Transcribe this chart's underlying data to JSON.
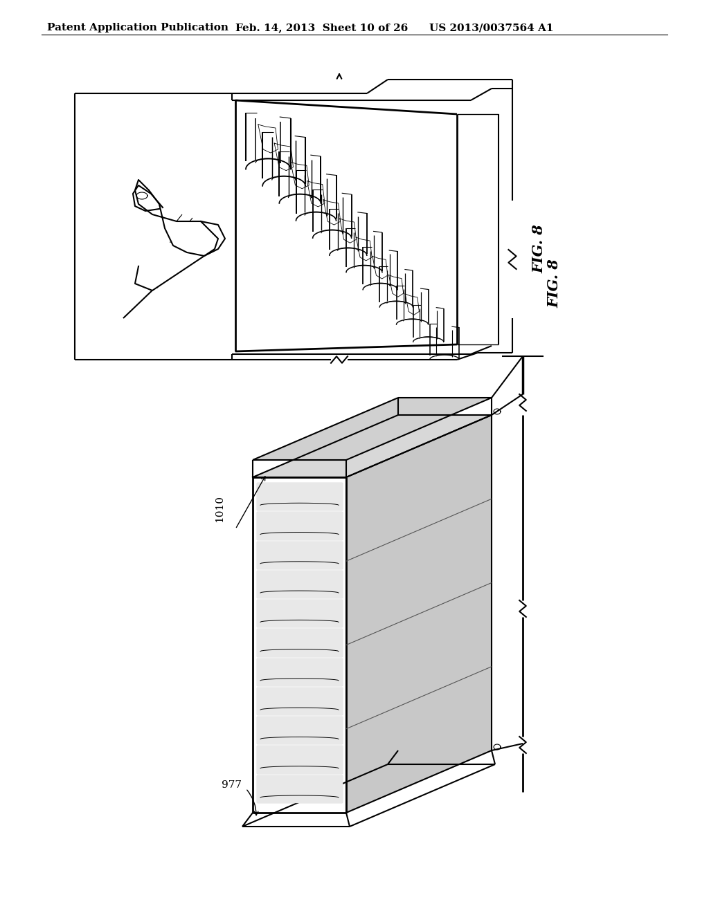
{
  "background_color": "#ffffff",
  "header_left": "Patent Application Publication",
  "header_middle": "Feb. 14, 2013  Sheet 10 of 26",
  "header_right": "US 2013/0037564 A1",
  "fig_label": "FIG. 8",
  "label_1010": "1010",
  "label_977": "977",
  "header_fontsize": 11,
  "fig_label_fontsize": 15,
  "annotation_fontsize": 11
}
